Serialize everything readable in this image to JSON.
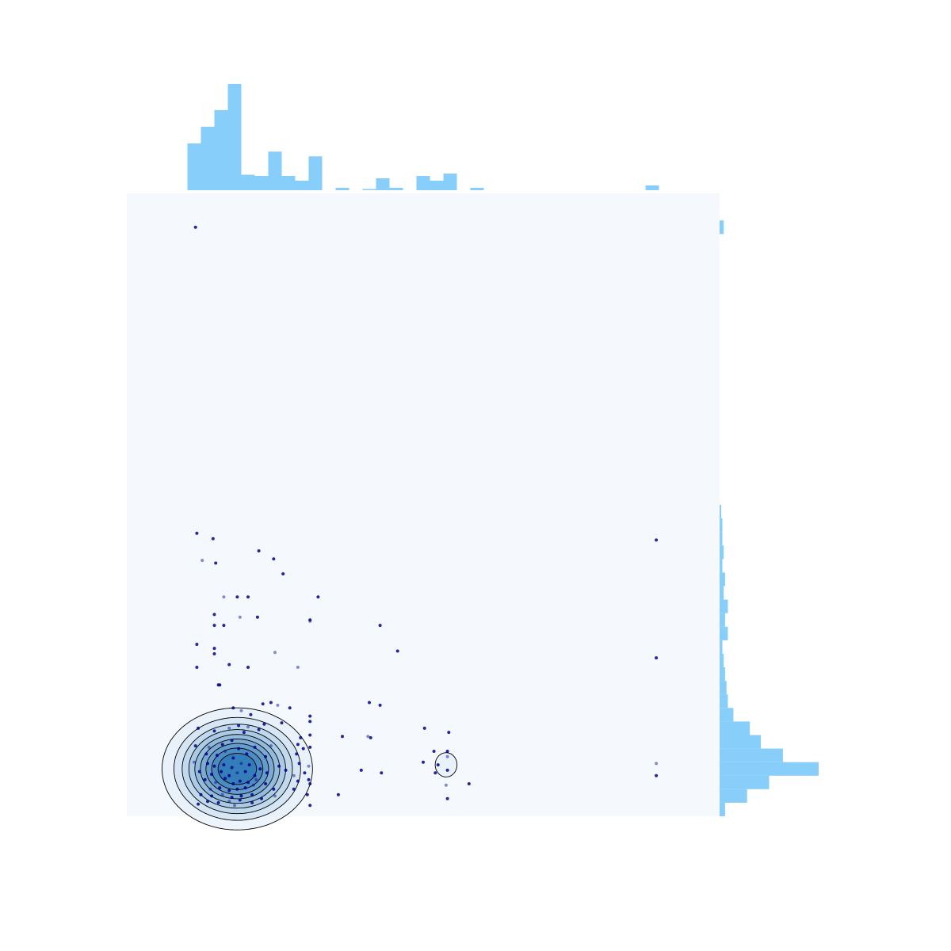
{
  "colors": {
    "panel_background": "#f5f9fe",
    "histogram": "#87cefa",
    "points": "#00008b",
    "kde_fill_light": "#deebf7",
    "kde_fill_dark": "#2171b5",
    "kde_line": "#000000"
  },
  "chart_data": {
    "type": "scatter",
    "variant": "joint-plot",
    "title": "",
    "xlabel": "",
    "ylabel": "",
    "axes_visible": false,
    "grid": false,
    "xlim": [
      0,
      44
    ],
    "ylim": [
      0,
      46
    ],
    "points": [
      [
        5.1,
        43.5
      ],
      [
        5.2,
        20.9
      ],
      [
        6.4,
        20.5
      ],
      [
        5.6,
        18.9
      ],
      [
        6.6,
        18.7
      ],
      [
        9.8,
        19.6
      ],
      [
        10.9,
        19.0
      ],
      [
        11.6,
        17.9
      ],
      [
        7.2,
        16.2
      ],
      [
        8.2,
        16.2
      ],
      [
        9.0,
        16.2
      ],
      [
        14.2,
        16.2
      ],
      [
        6.5,
        14.9
      ],
      [
        8.4,
        14.7
      ],
      [
        9.7,
        14.7
      ],
      [
        13.6,
        14.5
      ],
      [
        6.5,
        14.1
      ],
      [
        7.2,
        14.1
      ],
      [
        13.6,
        14.4
      ],
      [
        18.8,
        14.1
      ],
      [
        5.2,
        12.7
      ],
      [
        6.5,
        12.4
      ],
      [
        6.5,
        12.0
      ],
      [
        11.0,
        12.1
      ],
      [
        20.1,
        12.2
      ],
      [
        5.2,
        11.0
      ],
      [
        7.6,
        11.2
      ],
      [
        9.0,
        11.0
      ],
      [
        12.7,
        11.0
      ],
      [
        6.8,
        9.7
      ],
      [
        6.9,
        9.7
      ],
      [
        10.1,
        8.3
      ],
      [
        10.7,
        8.4
      ],
      [
        11.2,
        8.2
      ],
      [
        12.1,
        8.0
      ],
      [
        18.0,
        8.4
      ],
      [
        18.8,
        8.2
      ],
      [
        7.9,
        8.0
      ],
      [
        8.5,
        7.8
      ],
      [
        9.2,
        7.5
      ],
      [
        13.6,
        7.4
      ],
      [
        13.6,
        7.0
      ],
      [
        8.3,
        6.7
      ],
      [
        9.0,
        6.6
      ],
      [
        10.2,
        6.8
      ],
      [
        11.5,
        6.9
      ],
      [
        5.3,
        6.5
      ],
      [
        6.5,
        6.3
      ],
      [
        7.6,
        6.5
      ],
      [
        8.7,
        6.2
      ],
      [
        9.8,
        6.4
      ],
      [
        13.6,
        6.0
      ],
      [
        16.0,
        5.9
      ],
      [
        17.9,
        5.9
      ],
      [
        18.1,
        5.8
      ],
      [
        12.9,
        5.8
      ],
      [
        12.7,
        5.3
      ],
      [
        5.1,
        5.2
      ],
      [
        6.1,
        5.1
      ],
      [
        7.1,
        5.3
      ],
      [
        7.8,
        5.6
      ],
      [
        8.3,
        5.0
      ],
      [
        9.5,
        5.1
      ],
      [
        10.7,
        5.2
      ],
      [
        13.1,
        5.0
      ],
      [
        13.6,
        5.1
      ],
      [
        5.9,
        4.6
      ],
      [
        6.7,
        4.5
      ],
      [
        7.3,
        4.8
      ],
      [
        7.9,
        4.3
      ],
      [
        8.9,
        4.6
      ],
      [
        10.3,
        4.4
      ],
      [
        12.6,
        4.6
      ],
      [
        5.0,
        4.0
      ],
      [
        6.0,
        3.9
      ],
      [
        6.5,
        3.7
      ],
      [
        7.2,
        3.8
      ],
      [
        7.8,
        3.6
      ],
      [
        8.5,
        3.9
      ],
      [
        9.1,
        3.8
      ],
      [
        9.9,
        3.5
      ],
      [
        11.3,
        3.7
      ],
      [
        12.8,
        3.9
      ],
      [
        13.5,
        3.7
      ],
      [
        5.4,
        3.3
      ],
      [
        6.3,
        3.1
      ],
      [
        7.0,
        3.3
      ],
      [
        7.6,
        3.0
      ],
      [
        8.2,
        3.2
      ],
      [
        8.8,
        3.3
      ],
      [
        9.5,
        3.0
      ],
      [
        10.4,
        3.2
      ],
      [
        11.8,
        3.4
      ],
      [
        12.4,
        3.0
      ],
      [
        13.2,
        3.2
      ],
      [
        17.4,
        3.4
      ],
      [
        18.9,
        3.2
      ],
      [
        5.8,
        2.7
      ],
      [
        6.6,
        2.5
      ],
      [
        7.3,
        2.8
      ],
      [
        7.9,
        2.4
      ],
      [
        8.4,
        2.6
      ],
      [
        9.0,
        2.5
      ],
      [
        9.6,
        2.7
      ],
      [
        10.3,
        2.4
      ],
      [
        12.7,
        2.6
      ],
      [
        13.5,
        2.7
      ],
      [
        13.6,
        2.4
      ],
      [
        6.2,
        2.0
      ],
      [
        6.9,
        2.1
      ],
      [
        7.6,
        1.9
      ],
      [
        8.2,
        2.0
      ],
      [
        8.8,
        2.1
      ],
      [
        9.4,
        2.3
      ],
      [
        10.9,
        2.0
      ],
      [
        12.4,
        2.0
      ],
      [
        5.5,
        1.6
      ],
      [
        6.3,
        1.5
      ],
      [
        7.1,
        1.6
      ],
      [
        7.8,
        1.4
      ],
      [
        8.5,
        1.5
      ],
      [
        9.3,
        1.6
      ],
      [
        10.0,
        1.3
      ],
      [
        11.0,
        1.5
      ],
      [
        13.4,
        1.6
      ],
      [
        15.7,
        1.6
      ],
      [
        6.0,
        1.1
      ],
      [
        6.8,
        1.0
      ],
      [
        7.6,
        1.1
      ],
      [
        8.4,
        1.2
      ],
      [
        9.3,
        1.0
      ],
      [
        13.6,
        0.8
      ],
      [
        5.3,
        0.9
      ],
      [
        8.0,
        0.8
      ],
      [
        22.1,
        6.5
      ],
      [
        22.8,
        4.8
      ],
      [
        23.8,
        4.8
      ],
      [
        23.9,
        6.2
      ],
      [
        23.8,
        4.4
      ],
      [
        22.0,
        4.0
      ],
      [
        23.1,
        3.8
      ],
      [
        23.8,
        3.4
      ],
      [
        22.9,
        3.2
      ],
      [
        23.7,
        2.3
      ],
      [
        25.4,
        2.4
      ],
      [
        23.8,
        1.3
      ],
      [
        39.3,
        20.4
      ],
      [
        39.3,
        11.7
      ],
      [
        39.3,
        3.9
      ],
      [
        39.3,
        3.0
      ]
    ],
    "x_histogram": {
      "bin_edges": [
        4.5,
        5.5,
        6.5,
        7.5,
        8.5,
        9.5,
        10.5,
        11.5,
        12.5,
        13.5,
        14.5,
        15.5,
        16.5,
        17.5,
        18.5,
        19.5,
        20.5,
        21.5,
        22.5,
        23.5,
        24.5,
        25.5,
        26.5,
        27.5,
        28.5,
        29.5,
        30.5,
        31.5,
        32.5,
        33.5,
        34.5,
        35.5,
        36.5,
        37.5,
        38.5,
        39.5,
        40.5
      ],
      "density": [
        0.079,
        0.107,
        0.135,
        0.179,
        0.026,
        0.024,
        0.065,
        0.024,
        0.016,
        0.057,
        0,
        0.004,
        0,
        0.002,
        0.02,
        0.004,
        0,
        0.024,
        0.016,
        0.028,
        0,
        0.004,
        0,
        0,
        0,
        0,
        0,
        0,
        0,
        0,
        0,
        0,
        0,
        0,
        0.008,
        0
      ]
    },
    "y_histogram": {
      "bin_edges": [
        0,
        1,
        2,
        3,
        4,
        5,
        6,
        7,
        8,
        9,
        10,
        11,
        12,
        13,
        14,
        15,
        16,
        17,
        18,
        19,
        20,
        21,
        22,
        23,
        24,
        25,
        26,
        27,
        28,
        29,
        30,
        31,
        32,
        33,
        34,
        35,
        36,
        37,
        38,
        39,
        40,
        41,
        42,
        43,
        44
      ],
      "density": [
        0.004,
        0.02,
        0.036,
        0.072,
        0.046,
        0.03,
        0.022,
        0.01,
        0.006,
        0.005,
        0.004,
        0.003,
        0.002,
        0.006,
        0.004,
        0.006,
        0.003,
        0.004,
        0.002,
        0.003,
        0.002,
        0.002,
        0.001,
        0,
        0,
        0,
        0,
        0,
        0,
        0,
        0,
        0,
        0,
        0,
        0,
        0,
        0,
        0,
        0,
        0,
        0,
        0,
        0,
        0.003
      ]
    },
    "kde": {
      "levels": 9,
      "fill": true,
      "modes": [
        {
          "center": [
            8.2,
            3.5
          ],
          "sx": 2.6,
          "sy": 2.1,
          "weight": 1.0
        },
        {
          "center": [
            23.7,
            3.8
          ],
          "sx": 0.9,
          "sy": 1.0,
          "weight": 0.15
        }
      ]
    }
  }
}
